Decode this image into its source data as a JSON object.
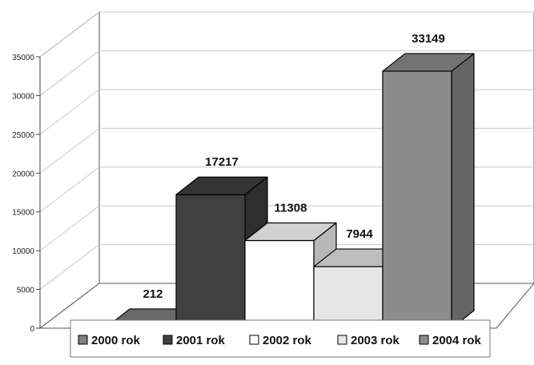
{
  "chart_data": {
    "type": "bar",
    "categories": [
      "2000 rok",
      "2001 rok",
      "2002 rok",
      "2003 rok",
      "2004 rok"
    ],
    "values": [
      212,
      17217,
      11308,
      7944,
      33149
    ],
    "ylim": [
      0,
      35000
    ],
    "yticks": [
      0,
      5000,
      10000,
      15000,
      20000,
      25000,
      30000,
      35000
    ],
    "grid": true,
    "legend_position": "bottom",
    "three_d": true,
    "colors": [
      "#808080",
      "#404040",
      "#ffffff",
      "#e6e6e6",
      "#8c8c8c"
    ]
  }
}
